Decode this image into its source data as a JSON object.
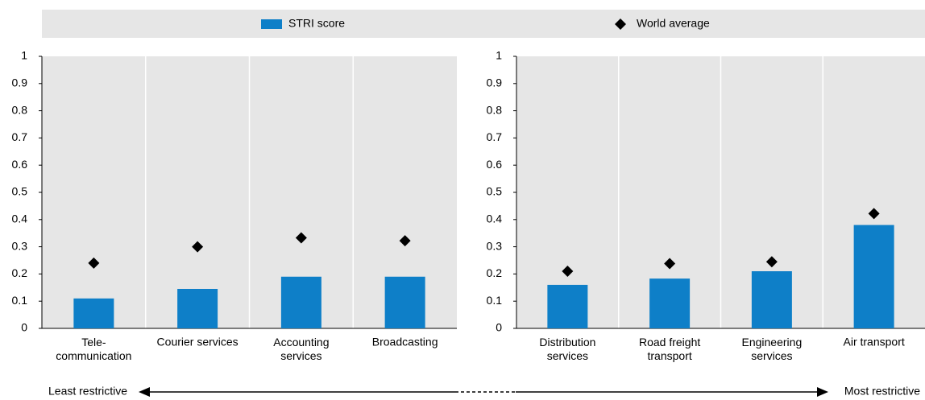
{
  "chart_data": [
    {
      "type": "bar",
      "categories": [
        "Tele- communication",
        "Courier services",
        "Accounting services",
        "Broadcasting"
      ],
      "series": [
        {
          "name": "STRI score",
          "color": "#0e7fc8",
          "values": [
            0.11,
            0.145,
            0.19,
            0.19
          ]
        },
        {
          "name": "World average",
          "color": "#000000",
          "values": [
            0.24,
            0.3,
            0.333,
            0.322
          ]
        }
      ],
      "ylim": [
        0,
        1
      ],
      "yticks": [
        0,
        0.1,
        0.2,
        0.3,
        0.4,
        0.5,
        0.6,
        0.7,
        0.8,
        0.9,
        1
      ]
    },
    {
      "type": "bar",
      "categories": [
        "Distribution services",
        "Road freight transport",
        "Engineering services",
        "Air transport"
      ],
      "series": [
        {
          "color": "#0e7fc8",
          "values": [
            0.16,
            0.183,
            0.21,
            0.38
          ]
        },
        {
          "color": "#000000",
          "values": [
            0.21,
            0.238,
            0.245,
            0.422
          ]
        }
      ],
      "ylim": [
        0,
        1
      ],
      "yticks": [
        0,
        0.1,
        0.2,
        0.3,
        0.4,
        0.5,
        0.6,
        0.7,
        0.8,
        0.9,
        1
      ]
    }
  ],
  "footer": {
    "left_label": "Least restrictive",
    "right_label": "Most restrictive"
  }
}
